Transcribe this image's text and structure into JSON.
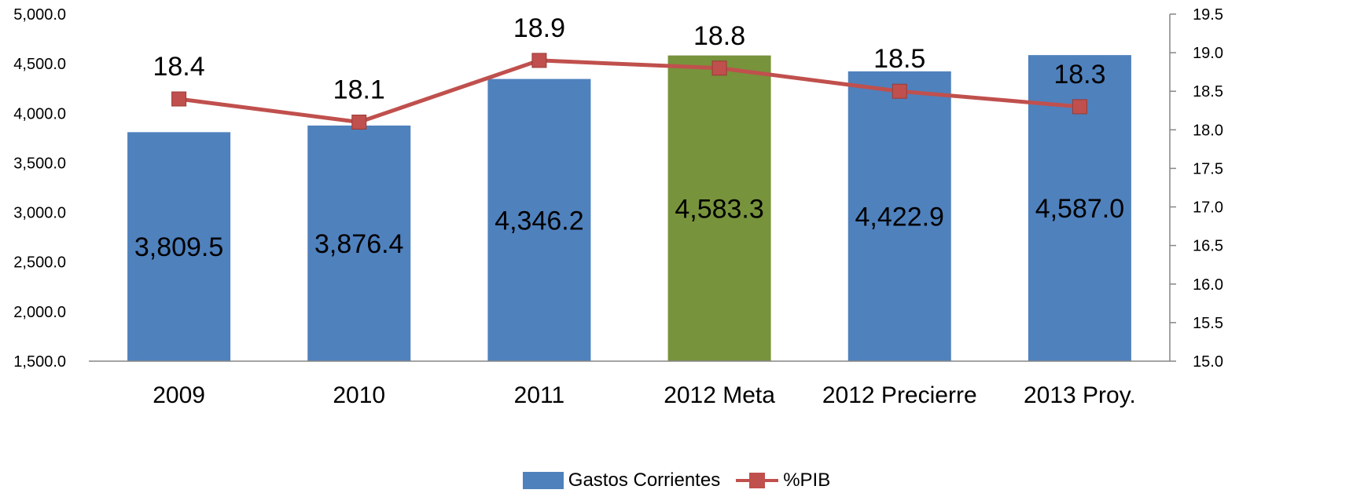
{
  "chart_data": {
    "type": "bar",
    "categories": [
      "2009",
      "2010",
      "2011",
      "2012 Meta",
      "2012 Precierre",
      "2013 Proy."
    ],
    "series": [
      {
        "name": "Gastos Corrientes",
        "type": "bar",
        "axis": "left",
        "values": [
          3809.5,
          3876.4,
          4346.2,
          4583.3,
          4422.9,
          4587.0
        ],
        "labels": [
          "3,809.5",
          "3,876.4",
          "4,346.2",
          "4,583.3",
          "4,422.9",
          "4,587.0"
        ],
        "color": "#4F81BD",
        "highlight_index": 3,
        "highlight_color": "#77933C"
      },
      {
        "name": "%PIB",
        "type": "line",
        "axis": "right",
        "values": [
          18.4,
          18.1,
          18.9,
          18.8,
          18.5,
          18.3
        ],
        "labels": [
          "18.4",
          "18.1",
          "18.9",
          "18.8",
          "18.5",
          "18.3"
        ],
        "color": "#C0504D"
      }
    ],
    "y_left": {
      "ylim": [
        1500,
        5000
      ],
      "ticks": [
        1500,
        2000,
        2500,
        3000,
        3500,
        4000,
        4500,
        5000
      ],
      "tick_labels": [
        "1,500.0",
        "2,000.0",
        "2,500.0",
        "3,000.0",
        "3,500.0",
        "4,000.0",
        "4,500.0",
        "5,000.0"
      ]
    },
    "y_right": {
      "ylim": [
        15,
        19.5
      ],
      "ticks": [
        15,
        15.5,
        16,
        16.5,
        17,
        17.5,
        18,
        18.5,
        19,
        19.5
      ],
      "tick_labels": [
        "15.0",
        "15.5",
        "16.0",
        "16.5",
        "17.0",
        "17.5",
        "18.0",
        "18.5",
        "19.0",
        "19.5"
      ]
    },
    "title": "",
    "xlabel": "",
    "ylabel": "",
    "grid": false,
    "legend": "bottom"
  }
}
